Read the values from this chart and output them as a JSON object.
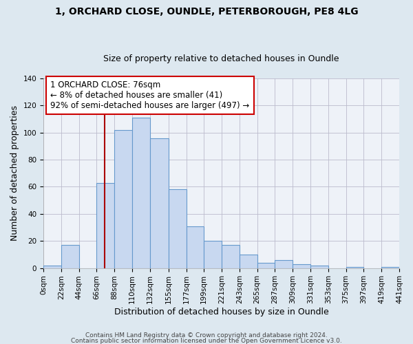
{
  "title_line1": "1, ORCHARD CLOSE, OUNDLE, PETERBOROUGH, PE8 4LG",
  "title_line2": "Size of property relative to detached houses in Oundle",
  "xlabel": "Distribution of detached houses by size in Oundle",
  "ylabel": "Number of detached properties",
  "bar_color": "#c8d8f0",
  "bar_edge_color": "#6699cc",
  "bin_edges": [
    0,
    22,
    44,
    66,
    88,
    110,
    132,
    155,
    177,
    199,
    221,
    243,
    265,
    287,
    309,
    331,
    353,
    375,
    397,
    419,
    441
  ],
  "bar_heights": [
    2,
    17,
    0,
    63,
    102,
    111,
    96,
    58,
    31,
    20,
    17,
    10,
    4,
    6,
    3,
    2,
    0,
    1,
    0,
    1
  ],
  "tick_labels": [
    "0sqm",
    "22sqm",
    "44sqm",
    "66sqm",
    "88sqm",
    "110sqm",
    "132sqm",
    "155sqm",
    "177sqm",
    "199sqm",
    "221sqm",
    "243sqm",
    "265sqm",
    "287sqm",
    "309sqm",
    "331sqm",
    "353sqm",
    "375sqm",
    "397sqm",
    "419sqm",
    "441sqm"
  ],
  "ylim": [
    0,
    140
  ],
  "yticks": [
    0,
    20,
    40,
    60,
    80,
    100,
    120,
    140
  ],
  "vline_x": 76,
  "vline_color": "#aa0000",
  "annotation_text": "1 ORCHARD CLOSE: 76sqm\n← 8% of detached houses are smaller (41)\n92% of semi-detached houses are larger (497) →",
  "annotation_box_color": "#ffffff",
  "annotation_box_edge_color": "#cc0000",
  "bg_color": "#dde8f0",
  "plot_bg_color": "#eef2f8",
  "footer_line1": "Contains HM Land Registry data © Crown copyright and database right 2024.",
  "footer_line2": "Contains public sector information licensed under the Open Government Licence v3.0.",
  "title_fontsize": 10,
  "subtitle_fontsize": 9,
  "xlabel_fontsize": 9,
  "ylabel_fontsize": 9,
  "tick_fontsize": 7.5,
  "annotation_fontsize": 8.5,
  "footer_fontsize": 6.5
}
